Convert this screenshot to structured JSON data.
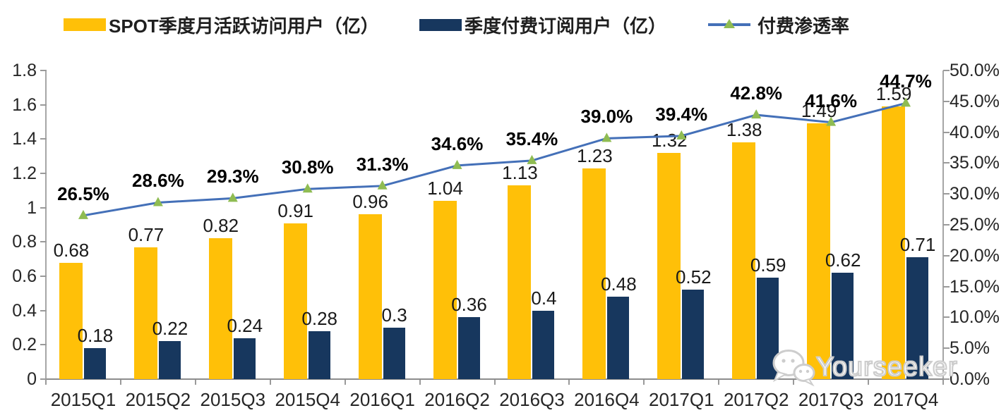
{
  "legend": {
    "items": [
      {
        "label": "SPOT季度月活跃访问用户（亿）",
        "swatch": "bar",
        "color": "#FFC008"
      },
      {
        "label": "季度付费订阅用户（亿）",
        "swatch": "bar",
        "color": "#17375E"
      },
      {
        "label": "付费渗透率",
        "swatch": "line-triangle",
        "color": "#4470B8",
        "marker_color": "#8FBC52"
      }
    ]
  },
  "watermark": {
    "text": "Yourseeker",
    "icon": "wechat-chat-bubbles-icon"
  },
  "chart_data": {
    "type": "bar",
    "subtype": "grouped-bar-with-line-combo",
    "categories": [
      "2015Q1",
      "2015Q2",
      "2015Q3",
      "2015Q4",
      "2016Q1",
      "2016Q2",
      "2016Q3",
      "2016Q4",
      "2017Q1",
      "2017Q2",
      "2017Q3",
      "2017Q4"
    ],
    "series": [
      {
        "name": "SPOT季度月活跃访问用户（亿）",
        "type": "bar",
        "axis": "left",
        "color": "#FFC008",
        "values": [
          0.68,
          0.77,
          0.82,
          0.91,
          0.96,
          1.04,
          1.13,
          1.23,
          1.32,
          1.38,
          1.49,
          1.59
        ],
        "labels": [
          "0.68",
          "0.77",
          "0.82",
          "0.91",
          "0.96",
          "1.04",
          "1.13",
          "1.23",
          "1.32",
          "1.38",
          "1.49",
          "1.59"
        ]
      },
      {
        "name": "季度付费订阅用户（亿）",
        "type": "bar",
        "axis": "left",
        "color": "#17375E",
        "values": [
          0.18,
          0.22,
          0.24,
          0.28,
          0.3,
          0.36,
          0.4,
          0.48,
          0.52,
          0.59,
          0.62,
          0.71
        ],
        "labels": [
          "0.18",
          "0.22",
          "0.24",
          "0.28",
          "0.3",
          "0.36",
          "0.4",
          "0.48",
          "0.52",
          "0.59",
          "0.62",
          "0.71"
        ]
      },
      {
        "name": "付费渗透率",
        "type": "line",
        "axis": "right",
        "color": "#4470B8",
        "marker": "triangle",
        "marker_color": "#8FBC52",
        "values": [
          26.5,
          28.6,
          29.3,
          30.8,
          31.3,
          34.6,
          35.4,
          39.0,
          39.4,
          42.8,
          41.6,
          44.7
        ],
        "labels": [
          "26.5%",
          "28.6%",
          "29.3%",
          "30.8%",
          "31.3%",
          "34.6%",
          "35.4%",
          "39.0%",
          "39.4%",
          "42.8%",
          "41.6%",
          "44.7%"
        ]
      }
    ],
    "left_axis": {
      "min": 0,
      "max": 1.8,
      "step": 0.2,
      "tick_labels": [
        "0",
        "0.2",
        "0.4",
        "0.6",
        "0.8",
        "1",
        "1.2",
        "1.4",
        "1.6",
        "1.8"
      ]
    },
    "right_axis": {
      "min": 0,
      "max": 50,
      "step": 5,
      "tick_labels": [
        "0.0%",
        "5.0%",
        "10.0%",
        "15.0%",
        "20.0%",
        "25.0%",
        "30.0%",
        "35.0%",
        "40.0%",
        "45.0%",
        "50.0%"
      ]
    },
    "grid": false,
    "legend_position": "top"
  }
}
